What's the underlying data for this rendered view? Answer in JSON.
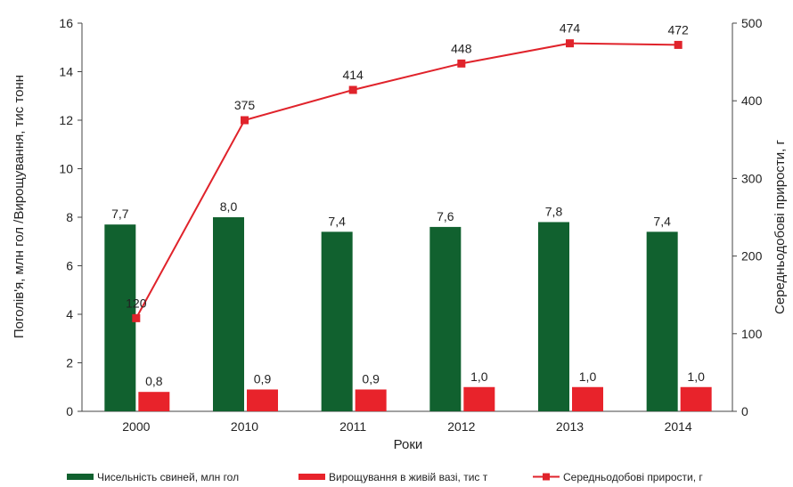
{
  "chart_data": {
    "type": "bar",
    "xlabel": "Роки",
    "ylabel": "Поголів'я, млн гол /Вирощування, тис тонн",
    "ylabel_right": "Середньодобові прирости, г",
    "categories": [
      "2000",
      "2010",
      "2011",
      "2012",
      "2013",
      "2014"
    ],
    "ylim": [
      0,
      16
    ],
    "y_ticks": [
      0,
      2,
      4,
      6,
      8,
      10,
      12,
      14,
      16
    ],
    "y2lim": [
      0,
      500
    ],
    "y2_ticks": [
      0,
      100,
      200,
      300,
      400,
      500
    ],
    "series": [
      {
        "name": "Чисельність свиней, млн гол",
        "type": "bar",
        "axis": "left",
        "color": "#11612f",
        "values": [
          7.7,
          8.0,
          7.4,
          7.6,
          7.8,
          7.4
        ],
        "labels": [
          "7,7",
          "8,0",
          "7,4",
          "7,6",
          "7,8",
          "7,4"
        ]
      },
      {
        "name": "Вирощування в живій вазі, тис т",
        "type": "bar",
        "axis": "left",
        "color": "#e8232b",
        "values": [
          0.8,
          0.9,
          0.9,
          1.0,
          1.0,
          1.0
        ],
        "labels": [
          "0,8",
          "0,9",
          "0,9",
          "1,0",
          "1,0",
          "1,0"
        ]
      },
      {
        "name": "Середньодобові прирости, г",
        "type": "line",
        "axis": "right",
        "color": "#e0232b",
        "values": [
          120,
          375,
          414,
          448,
          474,
          472
        ],
        "labels": [
          "120",
          "375",
          "414",
          "448",
          "474",
          "472"
        ]
      }
    ],
    "legend_position": "bottom"
  }
}
